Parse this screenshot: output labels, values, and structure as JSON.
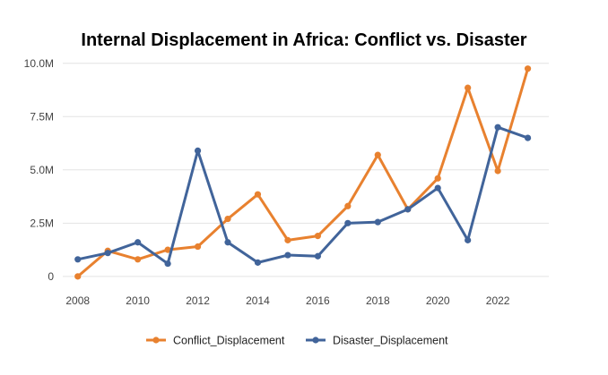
{
  "chart_data": {
    "type": "line",
    "title": "Internal Displacement in Africa: Conflict vs. Disaster",
    "xlabel": "",
    "ylabel": "",
    "x": [
      2008,
      2009,
      2010,
      2011,
      2012,
      2013,
      2014,
      2015,
      2016,
      2017,
      2018,
      2019,
      2020,
      2021,
      2022,
      2023
    ],
    "x_ticks": [
      2008,
      2010,
      2012,
      2014,
      2016,
      2018,
      2020,
      2022
    ],
    "x_tick_labels": [
      "2008",
      "2010",
      "2012",
      "2014",
      "2016",
      "2018",
      "2020",
      "2022"
    ],
    "y_ticks": [
      0,
      2500000,
      5000000,
      7500000,
      10000000
    ],
    "y_tick_labels": [
      "0",
      "2.5M",
      "5.0M",
      "7.5M",
      "10.0M"
    ],
    "xlim": [
      2007.5,
      2023.7
    ],
    "ylim": [
      -300000,
      10200000
    ],
    "grid": "horizontal",
    "legend_position": "bottom",
    "series": [
      {
        "name": "Conflict_Displacement",
        "color": "#e8812f",
        "values": [
          0,
          1200000,
          800000,
          1250000,
          1400000,
          2700000,
          3850000,
          1700000,
          1900000,
          3300000,
          5700000,
          3150000,
          4600000,
          8850000,
          4950000,
          9750000
        ]
      },
      {
        "name": "Disaster_Displacement",
        "color": "#41649a",
        "values": [
          800000,
          1100000,
          1600000,
          600000,
          5900000,
          1600000,
          650000,
          1000000,
          950000,
          2500000,
          2550000,
          3150000,
          4150000,
          1700000,
          7000000,
          6500000
        ]
      }
    ]
  }
}
